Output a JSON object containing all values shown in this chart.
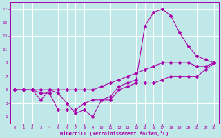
{
  "xlabel": "Windchill (Refroidissement éolien,°C)",
  "bg_color": "#c0e8e8",
  "grid_color": "#ffffff",
  "line_color": "#aa00aa",
  "xlim": [
    -0.5,
    23.5
  ],
  "ylim": [
    0,
    18
  ],
  "xticks": [
    0,
    1,
    2,
    3,
    4,
    5,
    6,
    7,
    8,
    9,
    10,
    11,
    12,
    13,
    14,
    15,
    16,
    17,
    18,
    19,
    20,
    21,
    22,
    23
  ],
  "yticks": [
    1,
    3,
    5,
    7,
    9,
    11,
    13,
    15,
    17
  ],
  "line_zigzag_x": [
    0,
    1,
    2,
    3,
    4,
    5,
    6,
    7,
    8,
    9,
    10,
    11,
    12,
    13,
    14,
    15,
    16,
    17,
    18,
    19,
    20,
    21,
    22,
    23
  ],
  "line_zigzag_y": [
    5,
    5,
    5,
    4.5,
    4.5,
    2,
    2,
    2,
    3,
    3.5,
    3.5,
    3.5,
    5,
    5.5,
    6,
    6,
    6,
    6.5,
    7,
    7,
    7,
    7,
    8,
    9
  ],
  "line_straight_x": [
    0,
    1,
    2,
    3,
    4,
    5,
    6,
    7,
    8,
    9,
    10,
    11,
    12,
    13,
    14,
    15,
    16,
    17,
    18,
    19,
    20,
    21,
    22,
    23
  ],
  "line_straight_y": [
    5,
    5,
    5,
    5,
    5,
    5,
    5,
    5,
    5,
    5,
    5.5,
    6,
    6.5,
    7,
    7.5,
    8,
    8.5,
    9,
    9,
    9,
    9,
    8.5,
    8.5,
    9
  ],
  "line_peak_x": [
    0,
    1,
    2,
    3,
    4,
    5,
    6,
    7,
    8,
    9,
    10,
    11,
    12,
    13,
    14,
    15,
    16,
    17,
    18,
    19,
    20,
    21,
    22,
    23
  ],
  "line_peak_y": [
    5,
    5,
    5,
    3.5,
    5,
    4.5,
    3,
    1.5,
    2,
    1,
    3.5,
    4,
    5.5,
    6,
    6.5,
    14.5,
    16.5,
    17,
    16,
    13.5,
    11.5,
    10,
    9.5,
    9
  ]
}
